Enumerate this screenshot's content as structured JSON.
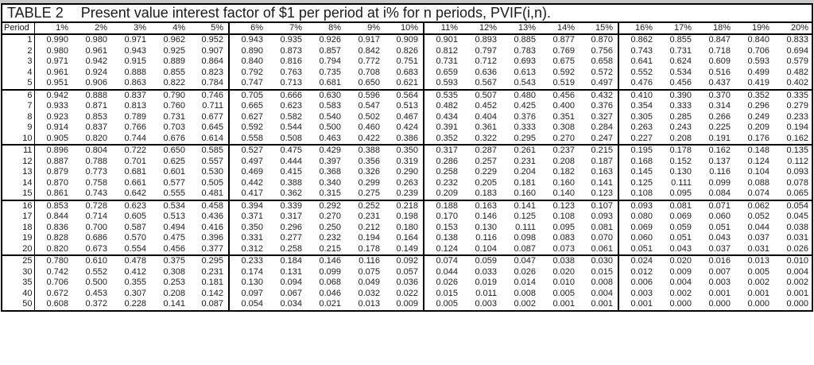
{
  "colors": {
    "border": "#000000",
    "text": "#1a1a1a",
    "background": "#ffffff",
    "window_edge": "#c8c8c8"
  },
  "table": {
    "title_label": "TABLE 2",
    "title_text": "Present value interest factor of $1 per period at i% for n periods, PVIF(i,n).",
    "period_header": "Period",
    "rate_headers": [
      "1%",
      "2%",
      "3%",
      "4%",
      "5%",
      "6%",
      "7%",
      "8%",
      "9%",
      "10%",
      "11%",
      "12%",
      "13%",
      "14%",
      "15%",
      "16%",
      "17%",
      "18%",
      "19%",
      "20%"
    ],
    "thick_border_after_periods": [
      "5",
      "10",
      "15",
      "20"
    ],
    "rows": [
      {
        "period": "1",
        "values": [
          "0.990",
          "0.980",
          "0.971",
          "0.962",
          "0.952",
          "0.943",
          "0.935",
          "0.926",
          "0.917",
          "0.909",
          "0.901",
          "0.893",
          "0.885",
          "0.877",
          "0.870",
          "0.862",
          "0.855",
          "0.847",
          "0.840",
          "0.833"
        ]
      },
      {
        "period": "2",
        "values": [
          "0.980",
          "0.961",
          "0.943",
          "0.925",
          "0.907",
          "0.890",
          "0.873",
          "0.857",
          "0.842",
          "0.826",
          "0.812",
          "0.797",
          "0.783",
          "0.769",
          "0.756",
          "0.743",
          "0.731",
          "0.718",
          "0.706",
          "0.694"
        ]
      },
      {
        "period": "3",
        "values": [
          "0.971",
          "0.942",
          "0.915",
          "0.889",
          "0.864",
          "0.840",
          "0.816",
          "0.794",
          "0.772",
          "0.751",
          "0.731",
          "0.712",
          "0.693",
          "0.675",
          "0.658",
          "0.641",
          "0.624",
          "0.609",
          "0.593",
          "0.579"
        ]
      },
      {
        "period": "4",
        "values": [
          "0.961",
          "0.924",
          "0.888",
          "0.855",
          "0.823",
          "0.792",
          "0.763",
          "0.735",
          "0.708",
          "0.683",
          "0.659",
          "0.636",
          "0.613",
          "0.592",
          "0.572",
          "0.552",
          "0.534",
          "0.516",
          "0.499",
          "0.482"
        ]
      },
      {
        "period": "5",
        "values": [
          "0.951",
          "0.906",
          "0.863",
          "0.822",
          "0.784",
          "0.747",
          "0.713",
          "0.681",
          "0.650",
          "0.621",
          "0.593",
          "0.567",
          "0.543",
          "0.519",
          "0.497",
          "0.476",
          "0.456",
          "0.437",
          "0.419",
          "0.402"
        ]
      },
      {
        "period": "6",
        "values": [
          "0.942",
          "0.888",
          "0.837",
          "0.790",
          "0.746",
          "0.705",
          "0.666",
          "0.630",
          "0.596",
          "0.564",
          "0.535",
          "0.507",
          "0.480",
          "0.456",
          "0.432",
          "0.410",
          "0.390",
          "0.370",
          "0.352",
          "0.335"
        ]
      },
      {
        "period": "7",
        "values": [
          "0.933",
          "0.871",
          "0.813",
          "0.760",
          "0.711",
          "0.665",
          "0.623",
          "0.583",
          "0.547",
          "0.513",
          "0.482",
          "0.452",
          "0.425",
          "0.400",
          "0.376",
          "0.354",
          "0.333",
          "0.314",
          "0.296",
          "0.279"
        ]
      },
      {
        "period": "8",
        "values": [
          "0.923",
          "0.853",
          "0.789",
          "0.731",
          "0.677",
          "0.627",
          "0.582",
          "0.540",
          "0.502",
          "0.467",
          "0.434",
          "0.404",
          "0.376",
          "0.351",
          "0.327",
          "0.305",
          "0.285",
          "0.266",
          "0.249",
          "0.233"
        ]
      },
      {
        "period": "9",
        "values": [
          "0.914",
          "0.837",
          "0.766",
          "0.703",
          "0.645",
          "0.592",
          "0.544",
          "0.500",
          "0.460",
          "0.424",
          "0.391",
          "0.361",
          "0.333",
          "0.308",
          "0.284",
          "0.263",
          "0.243",
          "0.225",
          "0.209",
          "0.194"
        ]
      },
      {
        "period": "10",
        "values": [
          "0.905",
          "0.820",
          "0.744",
          "0.676",
          "0.614",
          "0.558",
          "0.508",
          "0.463",
          "0.422",
          "0.386",
          "0.352",
          "0.322",
          "0.295",
          "0.270",
          "0.247",
          "0.227",
          "0.208",
          "0.191",
          "0.176",
          "0.162"
        ]
      },
      {
        "period": "11",
        "values": [
          "0.896",
          "0.804",
          "0.722",
          "0.650",
          "0.585",
          "0.527",
          "0.475",
          "0.429",
          "0.388",
          "0.350",
          "0.317",
          "0.287",
          "0.261",
          "0.237",
          "0.215",
          "0.195",
          "0.178",
          "0.162",
          "0.148",
          "0.135"
        ]
      },
      {
        "period": "12",
        "values": [
          "0.887",
          "0.788",
          "0.701",
          "0.625",
          "0.557",
          "0.497",
          "0.444",
          "0.397",
          "0.356",
          "0.319",
          "0.286",
          "0.257",
          "0.231",
          "0.208",
          "0.187",
          "0.168",
          "0.152",
          "0.137",
          "0.124",
          "0.112"
        ]
      },
      {
        "period": "13",
        "values": [
          "0.879",
          "0.773",
          "0.681",
          "0.601",
          "0.530",
          "0.469",
          "0.415",
          "0.368",
          "0.326",
          "0.290",
          "0.258",
          "0.229",
          "0.204",
          "0.182",
          "0.163",
          "0.145",
          "0.130",
          "0.116",
          "0.104",
          "0.093"
        ]
      },
      {
        "period": "14",
        "values": [
          "0.870",
          "0.758",
          "0.661",
          "0.577",
          "0.505",
          "0.442",
          "0.388",
          "0.340",
          "0.299",
          "0.263",
          "0.232",
          "0.205",
          "0.181",
          "0.160",
          "0.141",
          "0.125",
          "0.111",
          "0.099",
          "0.088",
          "0.078"
        ]
      },
      {
        "period": "15",
        "values": [
          "0.861",
          "0.743",
          "0.642",
          "0.555",
          "0.481",
          "0.417",
          "0.362",
          "0.315",
          "0.275",
          "0.239",
          "0.209",
          "0.183",
          "0.160",
          "0.140",
          "0.123",
          "0.108",
          "0.095",
          "0.084",
          "0.074",
          "0.065"
        ]
      },
      {
        "period": "16",
        "values": [
          "0.853",
          "0.728",
          "0.623",
          "0.534",
          "0.458",
          "0.394",
          "0.339",
          "0.292",
          "0.252",
          "0.218",
          "0.188",
          "0.163",
          "0.141",
          "0.123",
          "0.107",
          "0.093",
          "0.081",
          "0.071",
          "0.062",
          "0.054"
        ]
      },
      {
        "period": "17",
        "values": [
          "0.844",
          "0.714",
          "0.605",
          "0.513",
          "0.436",
          "0.371",
          "0.317",
          "0.270",
          "0.231",
          "0.198",
          "0.170",
          "0.146",
          "0.125",
          "0.108",
          "0.093",
          "0.080",
          "0.069",
          "0.060",
          "0.052",
          "0.045"
        ]
      },
      {
        "period": "18",
        "values": [
          "0.836",
          "0.700",
          "0.587",
          "0.494",
          "0.416",
          "0.350",
          "0.296",
          "0.250",
          "0.212",
          "0.180",
          "0.153",
          "0.130",
          "0.111",
          "0.095",
          "0.081",
          "0.069",
          "0.059",
          "0.051",
          "0.044",
          "0.038"
        ]
      },
      {
        "period": "19",
        "values": [
          "0.828",
          "0.686",
          "0.570",
          "0.475",
          "0.396",
          "0.331",
          "0.277",
          "0.232",
          "0.194",
          "0.164",
          "0.138",
          "0.116",
          "0.098",
          "0.083",
          "0.070",
          "0.060",
          "0.051",
          "0.043",
          "0.037",
          "0.031"
        ]
      },
      {
        "period": "20",
        "values": [
          "0.820",
          "0.673",
          "0.554",
          "0.456",
          "0.377",
          "0.312",
          "0.258",
          "0.215",
          "0.178",
          "0.149",
          "0.124",
          "0.104",
          "0.087",
          "0.073",
          "0.061",
          "0.051",
          "0.043",
          "0.037",
          "0.031",
          "0.026"
        ]
      },
      {
        "period": "25",
        "values": [
          "0.780",
          "0.610",
          "0.478",
          "0.375",
          "0.295",
          "0.233",
          "0.184",
          "0.146",
          "0.116",
          "0.092",
          "0.074",
          "0.059",
          "0.047",
          "0.038",
          "0.030",
          "0.024",
          "0.020",
          "0.016",
          "0.013",
          "0.010"
        ]
      },
      {
        "period": "30",
        "values": [
          "0.742",
          "0.552",
          "0.412",
          "0.308",
          "0.231",
          "0.174",
          "0.131",
          "0.099",
          "0.075",
          "0.057",
          "0.044",
          "0.033",
          "0.026",
          "0.020",
          "0.015",
          "0.012",
          "0.009",
          "0.007",
          "0.005",
          "0.004"
        ]
      },
      {
        "period": "35",
        "values": [
          "0.706",
          "0.500",
          "0.355",
          "0.253",
          "0.181",
          "0.130",
          "0.094",
          "0.068",
          "0.049",
          "0.036",
          "0.026",
          "0.019",
          "0.014",
          "0.010",
          "0.008",
          "0.006",
          "0.004",
          "0.003",
          "0.002",
          "0.002"
        ]
      },
      {
        "period": "40",
        "values": [
          "0.672",
          "0.453",
          "0.307",
          "0.208",
          "0.142",
          "0.097",
          "0.067",
          "0.046",
          "0.032",
          "0.022",
          "0.015",
          "0.011",
          "0.008",
          "0.005",
          "0.004",
          "0.003",
          "0.002",
          "0.001",
          "0.001",
          "0.001"
        ]
      },
      {
        "period": "50",
        "values": [
          "0.608",
          "0.372",
          "0.228",
          "0.141",
          "0.087",
          "0.054",
          "0.034",
          "0.021",
          "0.013",
          "0.009",
          "0.005",
          "0.003",
          "0.002",
          "0.001",
          "0.001",
          "0.001",
          "0.000",
          "0.000",
          "0.000",
          "0.000"
        ]
      }
    ]
  }
}
